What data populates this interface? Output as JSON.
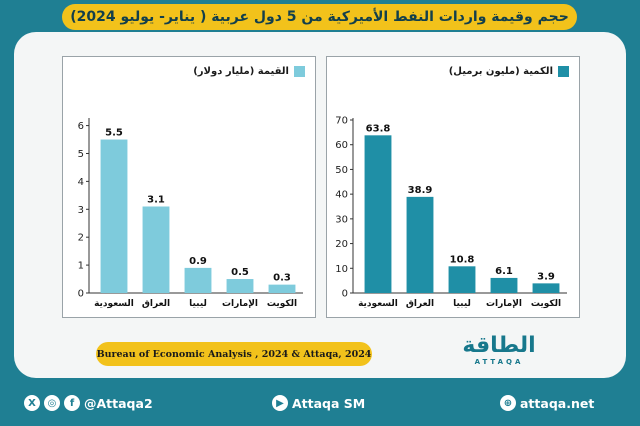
{
  "title": "حجم وقيمة واردات النفط الأميركية من 5 دول عربية ( يناير- يوليو 2024)",
  "source": "Bureau of Economic Analysis , 2024 & Attaqa, 2024",
  "logo": {
    "name": "الطاقة",
    "sub": "ATTAQA"
  },
  "footer": {
    "social_handle": "@Attaqa2",
    "youtube": "Attaqa SM",
    "website": "attaqa.net"
  },
  "colors": {
    "background": "#1f7f93",
    "accent_yellow": "#f2c21b",
    "value_bars": "#7ecbdc",
    "quantity_bars": "#1f8fa6"
  },
  "chart_data": [
    {
      "type": "bar",
      "legend": "القيمة (مليار دولار)",
      "categories": [
        "السعودية",
        "العراق",
        "ليبيا",
        "الإمارات",
        "الكويت"
      ],
      "values": [
        5.5,
        3.1,
        0.9,
        0.5,
        0.3
      ],
      "data_labels": [
        "5.5",
        "3.1",
        "0.9",
        "0.5",
        "0.3"
      ],
      "yticks": [
        0,
        1,
        2,
        3,
        4,
        5,
        6
      ],
      "ylim": [
        0,
        6.2
      ],
      "grid": false,
      "color": "#7ecbdc"
    },
    {
      "type": "bar",
      "legend": "الكمية (مليون برميل)",
      "categories": [
        "السعودية",
        "العراق",
        "ليبيا",
        "الإمارات",
        "الكويت"
      ],
      "values": [
        63.8,
        38.9,
        10.8,
        6.1,
        3.9
      ],
      "data_labels": [
        "63.8",
        "38.9",
        "10.8",
        "6.1",
        "3.9"
      ],
      "yticks": [
        0,
        10,
        20,
        30,
        40,
        50,
        60,
        70
      ],
      "ylim": [
        0,
        70
      ],
      "grid": false,
      "color": "#1f8fa6"
    }
  ]
}
